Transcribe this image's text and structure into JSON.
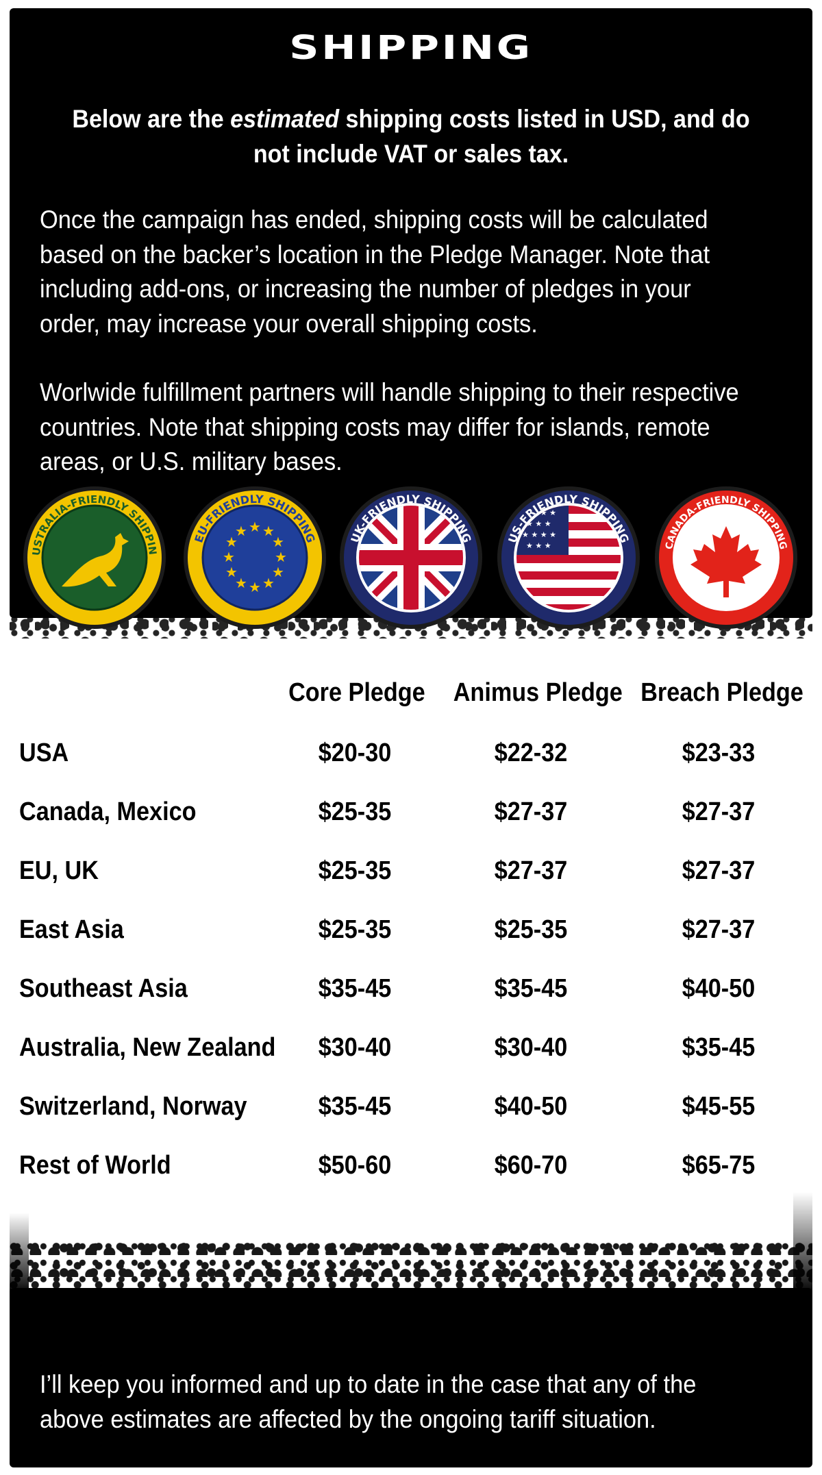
{
  "title": "SHIPPING",
  "intro": {
    "before": "Below are the ",
    "emph": "estimated",
    "after": " shipping costs listed in USD, and do not include VAT or sales tax."
  },
  "paragraphs": [
    "Once the campaign has ended, shipping costs will be calculated based on the backer’s location in the Pledge Manager. Note that including add-ons, or increasing the number of pledges in your order, may increase your overall shipping costs.",
    "Worlwide fulfillment partners will handle shipping to their respective countries. Note that shipping costs may differ for islands, remote areas, or U.S. military bases."
  ],
  "badges": [
    {
      "label": "AUSTRALIA-FRIENDLY SHIPPING",
      "icon": "kangaroo-icon",
      "color": "#1a5e2a",
      "ring": "#f3c400"
    },
    {
      "label": "EU-FRIENDLY SHIPPING",
      "icon": "eu-stars-icon",
      "color": "#1f3f9a",
      "ring": "#f3c400"
    },
    {
      "label": "UK-FRIENDLY SHIPPING",
      "icon": "union-jack-icon",
      "color": "#1f2a6b",
      "ring": "#ffffff"
    },
    {
      "label": "US-FRIENDLY SHIPPING",
      "icon": "us-flag-icon",
      "color": "#1f2a6b",
      "ring": "#ffffff"
    },
    {
      "label": "CANADA-FRIENDLY SHIPPING",
      "icon": "maple-leaf-icon",
      "color": "#e2231a",
      "ring": "#ffffff"
    }
  ],
  "table": {
    "columns": [
      "Core Pledge",
      "Animus Pledge",
      "Breach Pledge"
    ],
    "rows": [
      {
        "region": "USA",
        "core": "$20-30",
        "animus": "$22-32",
        "breach": "$23-33"
      },
      {
        "region": "Canada, Mexico",
        "core": "$25-35",
        "animus": "$27-37",
        "breach": "$27-37"
      },
      {
        "region": "EU, UK",
        "core": "$25-35",
        "animus": "$27-37",
        "breach": "$27-37"
      },
      {
        "region": "East Asia",
        "core": "$25-35",
        "animus": "$25-35",
        "breach": "$27-37"
      },
      {
        "region": "Southeast Asia",
        "core": "$35-45",
        "animus": "$35-45",
        "breach": "$40-50"
      },
      {
        "region": "Australia, New Zealand",
        "core": "$30-40",
        "animus": "$30-40",
        "breach": "$35-45"
      },
      {
        "region": "Switzerland, Norway",
        "core": "$35-45",
        "animus": "$40-50",
        "breach": "$45-55"
      },
      {
        "region": "Rest of World",
        "core": "$50-60",
        "animus": "$60-70",
        "breach": "$65-75"
      }
    ]
  },
  "footer_note": "I’ll keep you informed and up to date in the case that any of the above estimates are affected by the ongoing tariff situation."
}
